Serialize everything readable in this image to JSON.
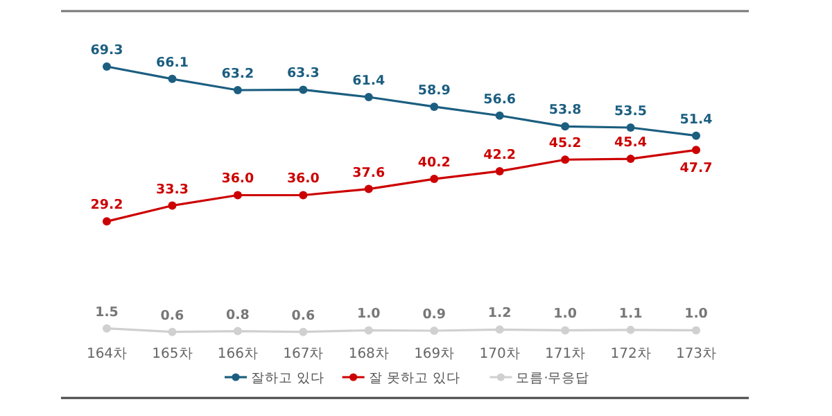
{
  "chart_data": {
    "type": "line",
    "categories": [
      "164차",
      "165차",
      "166차",
      "167차",
      "168차",
      "169차",
      "170차",
      "171차",
      "172차",
      "173차"
    ],
    "series": [
      {
        "name": "잘하고 있다",
        "color": "#1b5e80",
        "values": [
          69.3,
          66.1,
          63.2,
          63.3,
          61.4,
          58.9,
          56.6,
          53.8,
          53.5,
          51.4
        ],
        "value_labels": [
          "69.3",
          "66.1",
          "63.2",
          "63.3",
          "61.4",
          "58.9",
          "56.6",
          "53.8",
          "53.5",
          "51.4"
        ]
      },
      {
        "name": "잘 못하고 있다",
        "color": "#cc0000",
        "values": [
          29.2,
          33.3,
          36.0,
          36.0,
          37.6,
          40.2,
          42.2,
          45.2,
          45.4,
          47.7
        ],
        "value_labels": [
          "29.2",
          "33.3",
          "36.0",
          "36.0",
          "37.6",
          "40.2",
          "42.2",
          "45.2",
          "45.4",
          "47.7"
        ]
      },
      {
        "name": "모름·무응답",
        "color": "#d0d0d0",
        "values": [
          1.5,
          0.6,
          0.8,
          0.6,
          1.0,
          0.9,
          1.2,
          1.0,
          1.1,
          1.0
        ],
        "value_labels": [
          "1.5",
          "0.6",
          "0.8",
          "0.6",
          "1.0",
          "0.9",
          "1.2",
          "1.0",
          "1.1",
          "1.0"
        ]
      }
    ],
    "legend": "bottom",
    "marker": "circle",
    "line_style": "solid"
  }
}
